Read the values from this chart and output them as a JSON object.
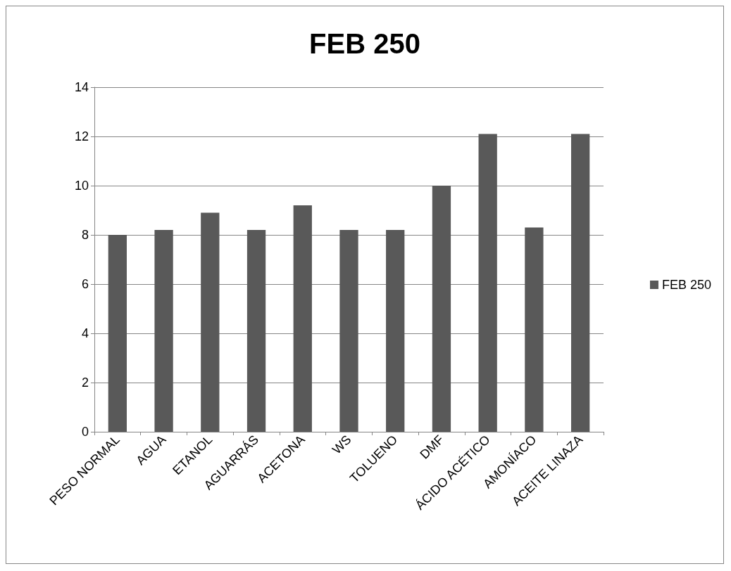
{
  "chart_data": {
    "type": "bar",
    "title": "FEB 250",
    "categories": [
      "PESO NORMAL",
      "AGUA",
      "ETANOL",
      "AGUARRÁS",
      "ACETONA",
      "WS",
      "TOLUENO",
      "DMF",
      "ÁCIDO ACÉTICO",
      "AMONÍACO",
      "ACEITE LINAZA"
    ],
    "series": [
      {
        "name": "FEB 250",
        "color": "#595959",
        "values": [
          8.0,
          8.2,
          8.9,
          8.2,
          9.2,
          8.2,
          8.2,
          10.0,
          12.1,
          8.3,
          12.1
        ]
      }
    ],
    "ylim": [
      0,
      14
    ],
    "yticks": [
      0,
      2,
      4,
      6,
      8,
      10,
      12,
      14
    ],
    "grid": "y",
    "legend": "right"
  }
}
